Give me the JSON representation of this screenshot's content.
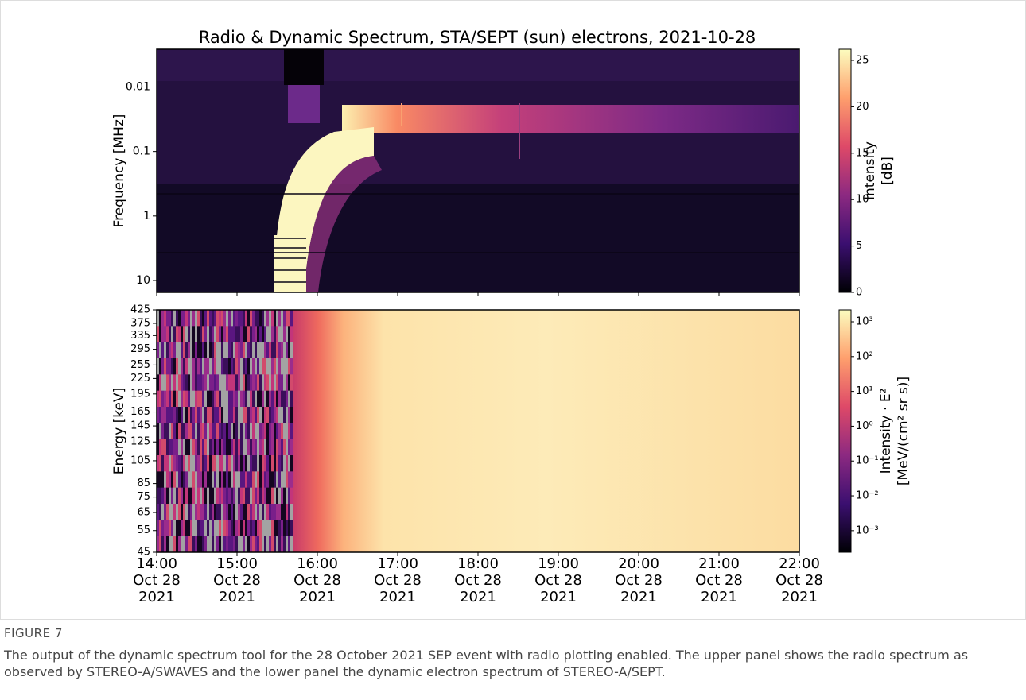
{
  "title": "Radio & Dynamic Spectrum, STA/SEPT (sun) electrons, 2021-10-28",
  "chart_data": [
    {
      "type": "heatmap",
      "ylabel": "Frequency [MHz]",
      "yscale": "log",
      "ylim": [
        15.3,
        0.0026
      ],
      "yticks": [
        0.01,
        0.1,
        1,
        10
      ],
      "xlim": [
        "2021-10-28T14:00",
        "2021-10-28T22:00"
      ],
      "colormap": "magma",
      "colorbar": {
        "label": [
          "Intensity",
          "[dB]"
        ],
        "scale": "linear",
        "lim": [
          0,
          26.2
        ],
        "ticks": [
          0,
          5,
          10,
          15,
          20,
          25
        ]
      }
    },
    {
      "type": "heatmap",
      "ylabel": "Energy [keV]",
      "yscale": "log",
      "ylim": [
        45,
        425
      ],
      "yticks": [
        45,
        55,
        65,
        75,
        85,
        105,
        125,
        145,
        165,
        195,
        225,
        255,
        295,
        335,
        375,
        425
      ],
      "xlim": [
        "2021-10-28T14:00",
        "2021-10-28T22:00"
      ],
      "xticks": [
        {
          "value": "2021-10-28T14:00",
          "label": [
            "14:00",
            "Oct 28",
            "2021"
          ]
        },
        {
          "value": "2021-10-28T15:00",
          "label": [
            "15:00",
            "Oct 28",
            "2021"
          ]
        },
        {
          "value": "2021-10-28T16:00",
          "label": [
            "16:00",
            "Oct 28",
            "2021"
          ]
        },
        {
          "value": "2021-10-28T17:00",
          "label": [
            "17:00",
            "Oct 28",
            "2021"
          ]
        },
        {
          "value": "2021-10-28T18:00",
          "label": [
            "18:00",
            "Oct 28",
            "2021"
          ]
        },
        {
          "value": "2021-10-28T19:00",
          "label": [
            "19:00",
            "Oct 28",
            "2021"
          ]
        },
        {
          "value": "2021-10-28T20:00",
          "label": [
            "20:00",
            "Oct 28",
            "2021"
          ]
        },
        {
          "value": "2021-10-28T21:00",
          "label": [
            "21:00",
            "Oct 28",
            "2021"
          ]
        },
        {
          "value": "2021-10-28T22:00",
          "label": [
            "22:00",
            "Oct 28",
            "2021"
          ]
        }
      ],
      "colormap": "magma",
      "colorbar": {
        "label": [
          "Intensity · E²",
          "[MeV/(cm² sr s)]"
        ],
        "scale": "log",
        "lim": [
          0.00024,
          2200
        ],
        "ticks": [
          {
            "value": 0.001,
            "label": "10⁻³"
          },
          {
            "value": 0.01,
            "label": "10⁻²"
          },
          {
            "value": 0.1,
            "label": "10⁻¹"
          },
          {
            "value": 1,
            "label": "10⁰"
          },
          {
            "value": 10,
            "label": "10¹"
          },
          {
            "value": 100,
            "label": "10²"
          },
          {
            "value": 1000,
            "label": "10³"
          }
        ]
      }
    }
  ],
  "caption": {
    "label": "FIGURE 7",
    "text": "The output of the dynamic spectrum tool for the 28 October 2021 SEP event with radio plotting enabled. The upper panel shows the radio spectrum as observed by STEREO-A/SWAVES and the lower panel the dynamic electron spectrum of STEREO-A/SEPT."
  }
}
